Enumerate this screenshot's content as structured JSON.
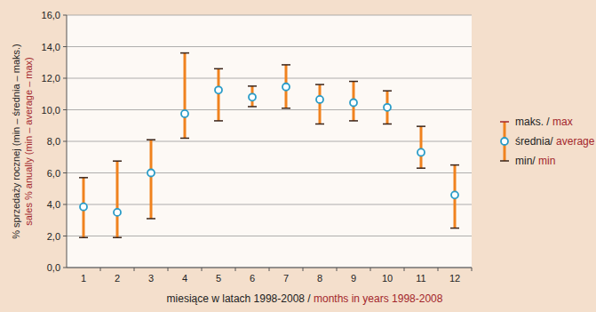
{
  "chart_data": {
    "type": "error_bar",
    "ylabel": [
      "% sprzedaży rocznej (min – średnia – maks.)",
      "sales % anually (min – average – max)"
    ],
    "xlabel": [
      "miesiące w latach 1998-2008 /",
      "months in years 1998-2008"
    ],
    "categories": [
      "1",
      "2",
      "3",
      "4",
      "5",
      "6",
      "7",
      "8",
      "9",
      "10",
      "11",
      "12"
    ],
    "values": [
      3.85,
      3.5,
      6.0,
      9.75,
      11.25,
      10.8,
      11.45,
      10.65,
      10.45,
      10.15,
      7.3,
      4.6
    ],
    "min": [
      1.9,
      1.9,
      3.1,
      8.2,
      9.3,
      10.2,
      10.1,
      9.1,
      9.3,
      9.1,
      6.3,
      2.5
    ],
    "max": [
      5.7,
      6.75,
      8.1,
      13.6,
      12.6,
      11.5,
      12.85,
      11.6,
      11.8,
      11.2,
      8.95,
      6.5
    ],
    "color": "#f0821e",
    "marker": "circle",
    "ylim": [
      0,
      16
    ],
    "yticks": [
      {
        "value": 0,
        "label": "0,0"
      },
      {
        "value": 2,
        "label": "2,0"
      },
      {
        "value": 4,
        "label": "4,0"
      },
      {
        "value": 6,
        "label": "6,0"
      },
      {
        "value": 8,
        "label": "8,0"
      },
      {
        "value": 10,
        "label": "10,0"
      },
      {
        "value": 12,
        "label": "12,0"
      },
      {
        "value": 14,
        "label": "14,0"
      },
      {
        "value": 16,
        "label": "16,0"
      }
    ],
    "grid": true,
    "legend": "right",
    "legend_labels": [
      [
        "maks. /",
        "max"
      ],
      [
        "średnia/",
        "average"
      ],
      [
        "min/",
        "min"
      ]
    ]
  }
}
